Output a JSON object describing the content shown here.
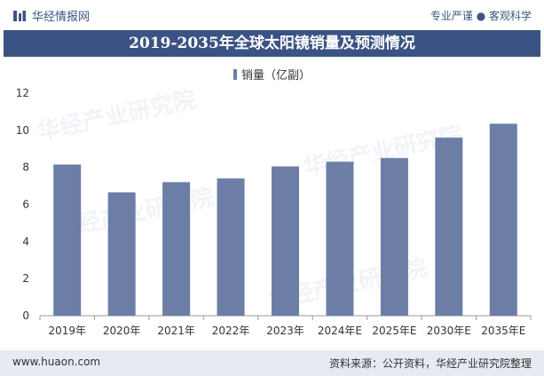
{
  "header": {
    "brand": "华经情报网",
    "slogan": "专业严谨 ● 客观科学"
  },
  "title": "2019-2035年全球太阳镜销量及预测情况",
  "footer": {
    "url": "www.huaon.com",
    "source": "资料来源：公开资料，华经产业研究院整理"
  },
  "watermark": "华经产业研究院",
  "colors": {
    "bar": "#6c7ea6",
    "title_bg": "#3b5384",
    "footer_bg": "#e6eaf1"
  },
  "chart_data": {
    "type": "bar",
    "categories": [
      "2019年",
      "2020年",
      "2021年",
      "2022年",
      "2023年",
      "2024年E",
      "2025年E",
      "2030年E",
      "2035年E"
    ],
    "series": [
      {
        "name": "销量（亿副）",
        "values": [
          8.15,
          6.65,
          7.2,
          7.4,
          8.05,
          8.3,
          8.5,
          9.6,
          10.35
        ]
      }
    ],
    "ylim": [
      0,
      12
    ],
    "yticks": [
      0,
      2,
      4,
      6,
      8,
      10,
      12
    ],
    "legend": "top-center",
    "grid": false
  }
}
